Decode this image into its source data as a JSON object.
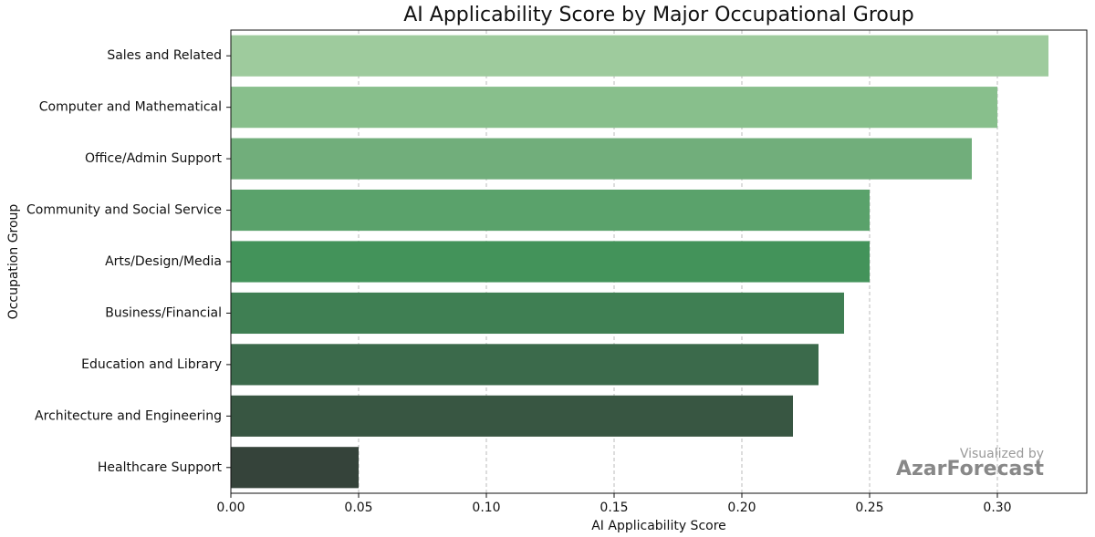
{
  "chart_data": {
    "type": "hbar",
    "title": "AI Applicability Score by Major Occupational Group",
    "x_label": "AI Applicability Score",
    "y_label": "Occupation Group",
    "categories": [
      "Sales and Related",
      "Computer and Mathematical",
      "Office/Admin Support",
      "Community and Social Service",
      "Arts/Design/Media",
      "Business/Financial",
      "Education and Library",
      "Architecture and Engineering",
      "Healthcare Support"
    ],
    "values": [
      0.32,
      0.3,
      0.29,
      0.25,
      0.25,
      0.24,
      0.23,
      0.22,
      0.05
    ],
    "colors": [
      "#9ecb9d",
      "#88bf8c",
      "#71ae7b",
      "#5aa26b",
      "#43935a",
      "#3f7f53",
      "#3b6a4b",
      "#385642",
      "#35433a"
    ],
    "xlim": [
      0,
      0.335
    ],
    "xticks": [
      {
        "value": 0,
        "label": "0.00"
      },
      {
        "value": 0.05,
        "label": "0.05"
      },
      {
        "value": 0.1,
        "label": "0.10"
      },
      {
        "value": 0.15,
        "label": "0.15"
      },
      {
        "value": 0.2,
        "label": "0.20"
      },
      {
        "value": 0.25,
        "label": "0.25"
      },
      {
        "value": 0.3,
        "label": "0.30"
      }
    ],
    "grid": true,
    "annotations": [
      "Visualized by",
      "AzarForecast"
    ]
  }
}
